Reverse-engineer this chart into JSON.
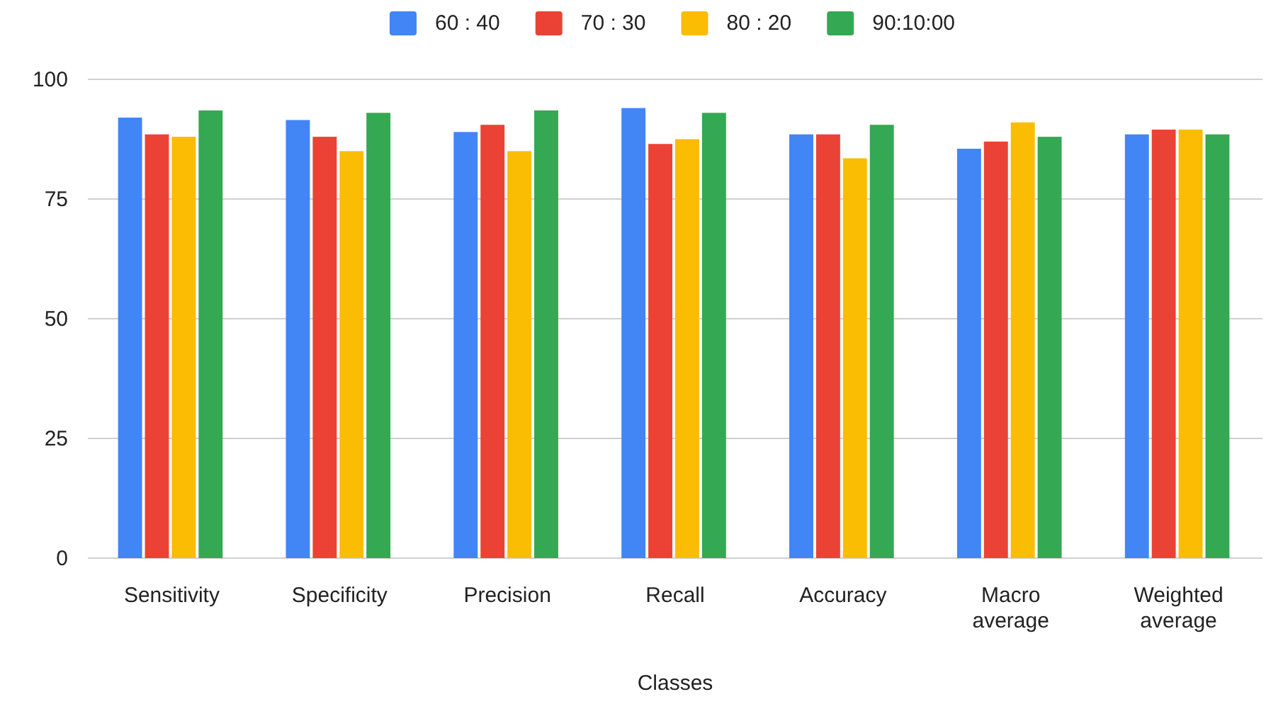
{
  "chart_data": {
    "type": "bar",
    "xlabel": "Classes",
    "categories": [
      "Sensitivity",
      "Specificity",
      "Precision",
      "Recall",
      "Accuracy",
      "Macro average",
      "Weighted average"
    ],
    "series": [
      {
        "name": "60 : 40",
        "color": "#4285f4",
        "values": [
          92,
          91.5,
          89,
          94,
          88.5,
          85.5,
          88.5
        ]
      },
      {
        "name": "70 : 30",
        "color": "#ea4335",
        "values": [
          88.5,
          88,
          90.5,
          86.5,
          88.5,
          87,
          89.5
        ]
      },
      {
        "name": "80 : 20",
        "color": "#fbbc04",
        "values": [
          88,
          85,
          85,
          87.5,
          83.5,
          91,
          89.5
        ]
      },
      {
        "name": "90:10:00",
        "color": "#34a853",
        "values": [
          93.5,
          93,
          93.5,
          93,
          90.5,
          88,
          88.5
        ]
      }
    ],
    "ylim": [
      0,
      100
    ],
    "yticks": [
      0,
      25,
      50,
      75,
      100
    ],
    "grid": "y",
    "legend": "top"
  }
}
